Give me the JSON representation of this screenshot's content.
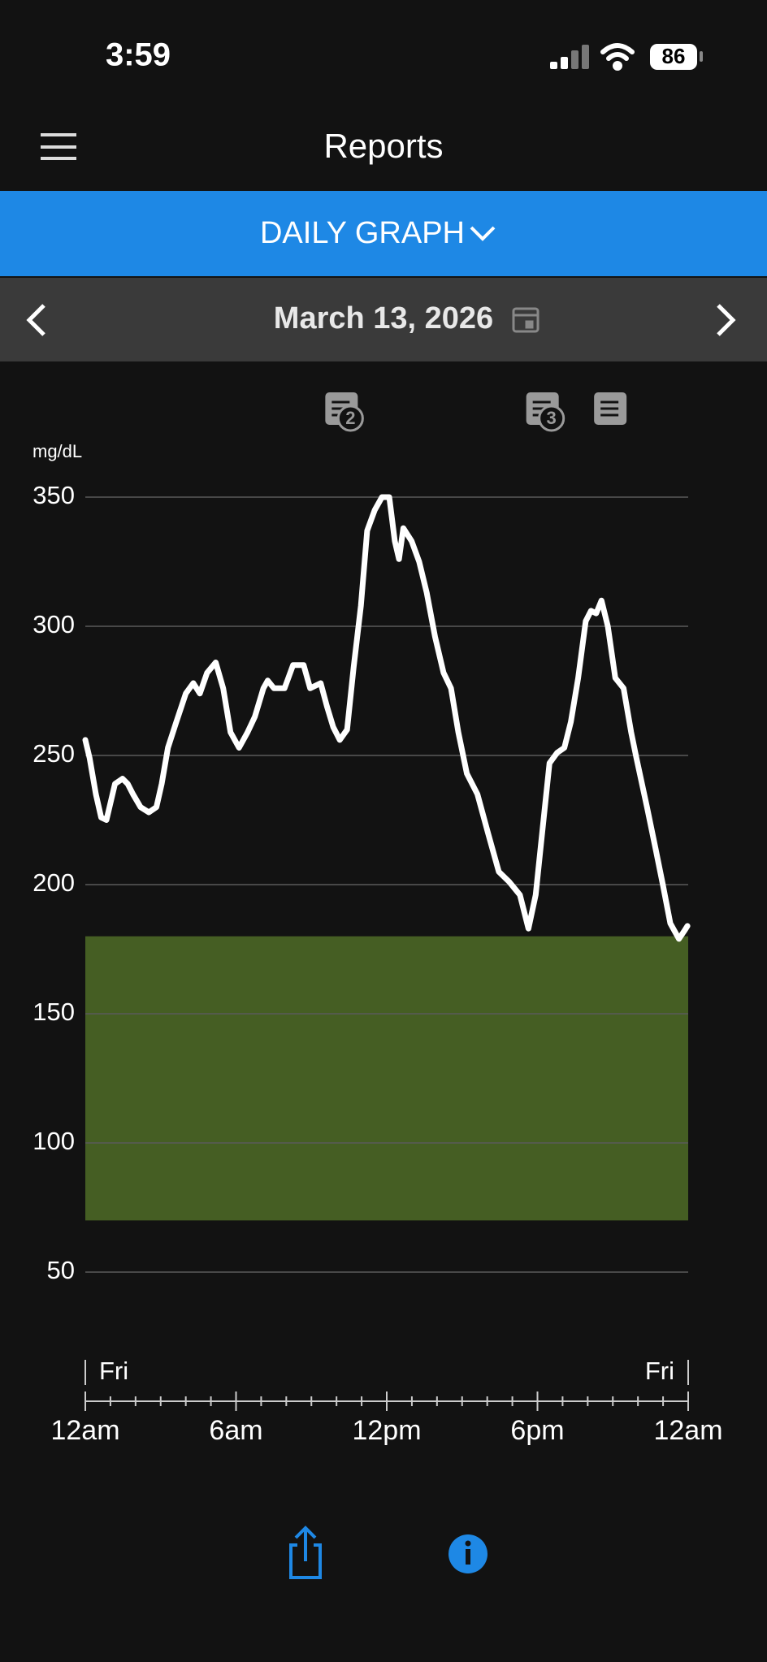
{
  "status_bar": {
    "time": "3:59",
    "battery": 86
  },
  "header": {
    "title": "Reports",
    "view": "DAILY GRAPH",
    "date": "March 13, 2026"
  },
  "chart_data": {
    "type": "line",
    "y_unit": "mg/dL",
    "color": "#ffffff",
    "x": [
      0,
      0.17,
      0.42,
      0.63,
      0.84,
      1.18,
      1.48,
      1.69,
      1.9,
      2.2,
      2.53,
      2.83,
      3.04,
      3.29,
      3.59,
      4.0,
      4.3,
      4.56,
      4.85,
      5.19,
      5.49,
      5.78,
      6.12,
      6.46,
      6.75,
      7.09,
      7.26,
      7.51,
      7.93,
      8.27,
      8.69,
      8.95,
      9.37,
      9.62,
      9.87,
      10.13,
      10.42,
      10.68,
      10.97,
      11.22,
      11.52,
      11.81,
      12.1,
      12.32,
      12.49,
      12.66,
      12.99,
      13.29,
      13.59,
      13.92,
      14.26,
      14.56,
      14.85,
      15.19,
      15.61,
      16.03,
      16.46,
      16.88,
      17.3,
      17.64,
      17.93,
      18.23,
      18.48,
      18.78,
      19.07,
      19.33,
      19.62,
      19.92,
      20.13,
      20.34,
      20.55,
      20.8,
      21.1,
      21.43,
      21.73,
      21.94,
      22.36,
      22.7,
      22.99,
      23.29,
      23.63,
      23.84,
      23.97
    ],
    "values": [
      256,
      249,
      235,
      226,
      225,
      239,
      241,
      239,
      235,
      230,
      228,
      230,
      239,
      253,
      262,
      274,
      278,
      274,
      282,
      286,
      276,
      259,
      253,
      259,
      265,
      276,
      279,
      276,
      276,
      285,
      285,
      276,
      278,
      269,
      261,
      256,
      260,
      284,
      308,
      337,
      345,
      350,
      350,
      333,
      326,
      338,
      333,
      325,
      313,
      296,
      282,
      276,
      259,
      243,
      235,
      220,
      205,
      201,
      196,
      183,
      196,
      224,
      247,
      251,
      253,
      263,
      280,
      302,
      306,
      305,
      310,
      300,
      280,
      276,
      259,
      249,
      230,
      214,
      200,
      185,
      179,
      182,
      184
    ],
    "xlim": [
      0,
      24
    ],
    "xticks": [
      {
        "value": 0,
        "label": "12am"
      },
      {
        "value": 6,
        "label": "6am"
      },
      {
        "value": 12,
        "label": "12pm"
      },
      {
        "value": 18,
        "label": "6pm"
      },
      {
        "value": 24,
        "label": "12am"
      }
    ],
    "xminorticks": [
      1,
      2,
      3,
      4,
      5,
      7,
      8,
      9,
      10,
      11,
      13,
      14,
      15,
      16,
      17,
      19,
      20,
      21,
      22,
      23
    ],
    "day_labels": [
      {
        "x": 0,
        "label": "Fri"
      },
      {
        "x": 24,
        "label": "Fri"
      }
    ],
    "ylim": [
      50,
      350
    ],
    "yticks": [
      50,
      100,
      150,
      200,
      250,
      300,
      350
    ],
    "grid": true,
    "target_range": [
      70,
      180
    ],
    "target_color": "#455e23",
    "notes": [
      {
        "x": 10.2,
        "count": 2
      },
      {
        "x": 18.2,
        "count": 3
      },
      {
        "x": 20.9
      }
    ]
  }
}
